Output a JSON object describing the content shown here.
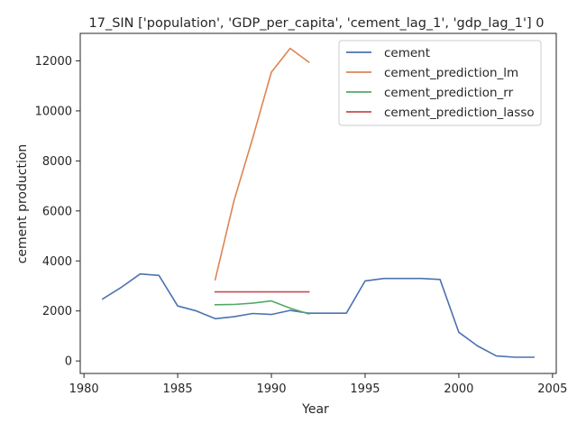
{
  "chart_data": {
    "type": "line",
    "title": "17_SIN ['population', 'GDP_per_capita', 'cement_lag_1', 'gdp_lag_1'] 0",
    "xlabel": "Year",
    "ylabel": "cement production",
    "xlim": [
      1979.8,
      2005.2
    ],
    "ylim": [
      -500,
      13100
    ],
    "xticks": [
      1980,
      1985,
      1990,
      1995,
      2000,
      2005
    ],
    "yticks": [
      0,
      2000,
      4000,
      6000,
      8000,
      10000,
      12000
    ],
    "grid": false,
    "legend_position": "top-right",
    "series": [
      {
        "name": "cement",
        "color": "#4c72b0",
        "x": [
          1981,
          1982,
          1983,
          1984,
          1985,
          1986,
          1987,
          1988,
          1989,
          1990,
          1991,
          1992,
          1993,
          1994,
          1995,
          1996,
          1997,
          1998,
          1999,
          2000,
          2001,
          2002,
          2003,
          2004
        ],
        "y": [
          2480,
          2950,
          3480,
          3420,
          2200,
          2000,
          1690,
          1770,
          1900,
          1860,
          2020,
          1910,
          1910,
          1910,
          3200,
          3300,
          3300,
          3300,
          3260,
          1150,
          600,
          200,
          150,
          150
        ]
      },
      {
        "name": "cement_prediction_lm",
        "color": "#dd8452",
        "x": [
          1987,
          1988,
          1989,
          1990,
          1991,
          1992
        ],
        "y": [
          3250,
          6400,
          8900,
          11550,
          12500,
          11950
        ]
      },
      {
        "name": "cement_prediction_rr",
        "color": "#55a868",
        "x": [
          1987,
          1988,
          1989,
          1990,
          1991,
          1992
        ],
        "y": [
          2250,
          2260,
          2310,
          2400,
          2110,
          1880
        ]
      },
      {
        "name": "cement_prediction_lasso",
        "color": "#c44e52",
        "x": [
          1987,
          1988,
          1989,
          1990,
          1991,
          1992
        ],
        "y": [
          2760,
          2760,
          2760,
          2760,
          2760,
          2760
        ]
      }
    ]
  }
}
